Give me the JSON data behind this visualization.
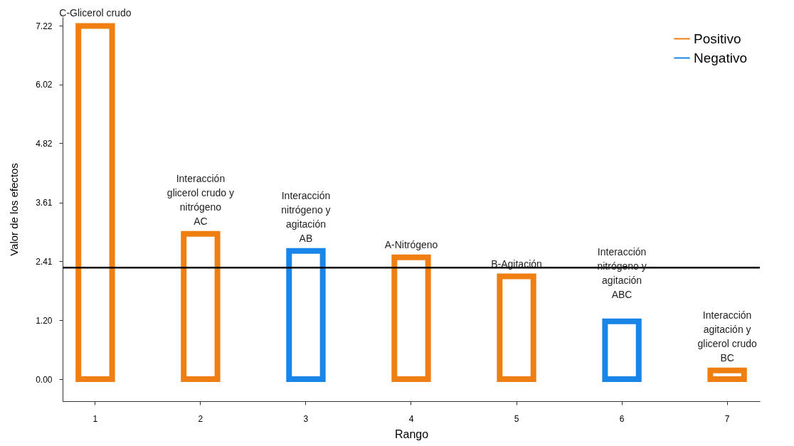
{
  "chart_data": {
    "type": "bar",
    "xlabel": "Rango",
    "ylabel": "Valor de los efectos",
    "categories": [
      "1",
      "2",
      "3",
      "4",
      "5",
      "6",
      "7"
    ],
    "series": [
      {
        "name": "Positivo",
        "color": "#f07f13",
        "values": [
          7.22,
          2.97,
          null,
          2.49,
          2.1,
          null,
          0.18
        ]
      },
      {
        "name": "Negativo",
        "color": "#1a85e8",
        "values": [
          null,
          null,
          2.62,
          null,
          null,
          1.18,
          null
        ]
      }
    ],
    "ylim": [
      -0.45,
      7.4
    ],
    "yticks": [
      {
        "value": 0,
        "label": "0.00"
      },
      {
        "value": 1.2,
        "label": "1.20"
      },
      2.41,
      3.61,
      4.82,
      6.02,
      7.22
    ],
    "ref_lines": [
      {
        "axis": "y",
        "value": 2.28,
        "color": "#000000"
      }
    ],
    "annotations": [
      {
        "text": "C-Glicerol crudo",
        "x": "1",
        "y": 7.22
      },
      {
        "text": "Interacción\nglicerol crudo y\nnitrógeno\nAC",
        "x": "2",
        "y": 2.97
      },
      {
        "text": "Interacción\nnitrógeno y\nagitación\nAB",
        "x": "3",
        "y": 2.62
      },
      {
        "text": "A-Nitrógeno",
        "x": "4",
        "y": 2.49
      },
      {
        "text": "B-Agitación",
        "x": "5",
        "y": 2.1
      },
      {
        "text": "Interacción\nnitrógeno y\nagitación\n\nABC",
        "x": "6",
        "y": 1.18
      },
      {
        "text": "Interacción\nagitación y\nglicerol crudo\nBC",
        "x": "7",
        "y": 0.18
      }
    ],
    "legend": "top right",
    "grid": false
  }
}
